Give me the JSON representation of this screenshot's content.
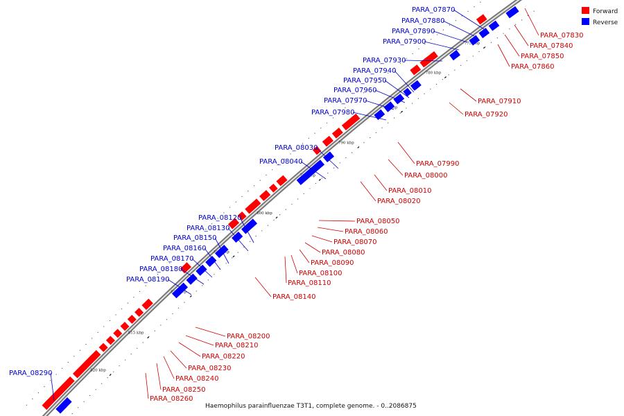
{
  "caption": "Haemophilus parainfluenzae T3T1, complete genome. - 0..2086875",
  "legend": [
    {
      "label": "Forward",
      "color": "#ff0000"
    },
    {
      "label": "Reverse",
      "color": "#0000ff"
    }
  ],
  "ticks": [
    "775 kbp",
    "780 kbp",
    "785 kbp",
    "790 kbp",
    "795 kbp",
    "800 kbp",
    "805 kbp",
    "810 kbp",
    "815 kbp",
    "820 kbp"
  ],
  "reverse_genes": [
    "PARA_07870",
    "PARA_07880",
    "PARA_07890",
    "PARA_07900",
    "PARA_07930",
    "PARA_07940",
    "PARA_07950",
    "PARA_07960",
    "PARA_07970",
    "PARA_07980",
    "PARA_08030",
    "PARA_08040",
    "PARA_08120",
    "PARA_08130",
    "PARA_08150",
    "PARA_08160",
    "PARA_08170",
    "PARA_08180",
    "PARA_08190",
    "PARA_08290"
  ],
  "forward_genes": [
    "PARA_07830",
    "PARA_07840",
    "PARA_07850",
    "PARA_07860",
    "PARA_07910",
    "PARA_07920",
    "PARA_07990",
    "PARA_08000",
    "PARA_08010",
    "PARA_08020",
    "PARA_08050",
    "PARA_08060",
    "PARA_08070",
    "PARA_08080",
    "PARA_08090",
    "PARA_08100",
    "PARA_08110",
    "PARA_08140",
    "PARA_08200",
    "PARA_08210",
    "PARA_08220",
    "PARA_08230",
    "PARA_08240",
    "PARA_08250",
    "PARA_08260"
  ],
  "colors": {
    "forward": "#ff0000",
    "reverse": "#0000ff",
    "forward_label": "#cc0000",
    "reverse_label": "#0000cc",
    "backbone": "#888888"
  }
}
